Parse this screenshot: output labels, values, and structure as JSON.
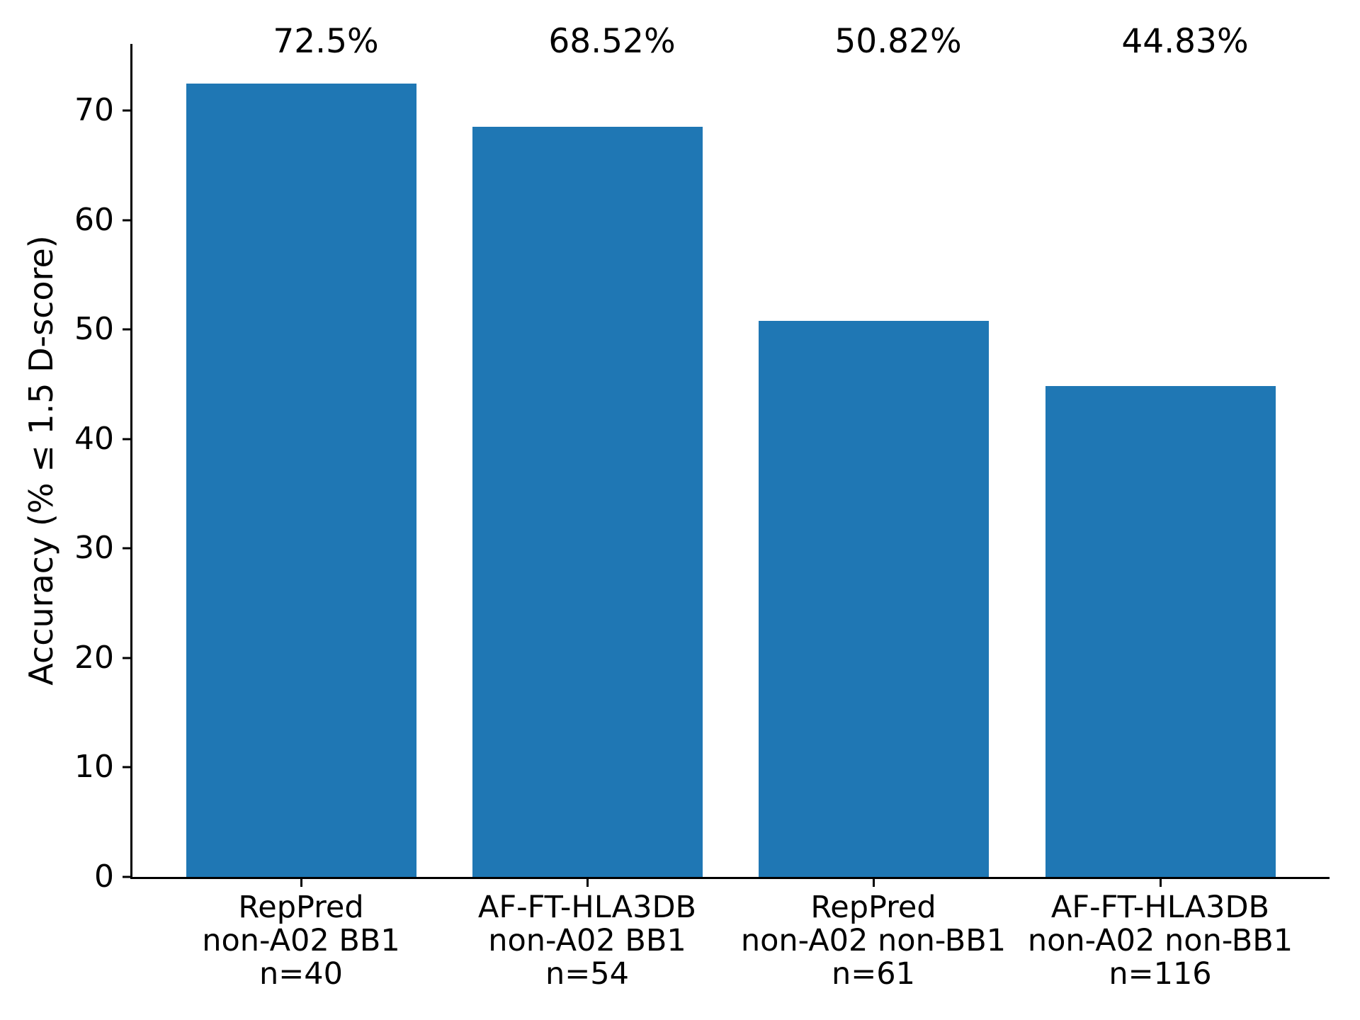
{
  "chart_data": {
    "type": "bar",
    "title": "",
    "xlabel": "",
    "ylabel": "Accuracy (% ≤ 1.5 D-score)",
    "ylim": [
      0,
      76.1
    ],
    "yticks": [
      0,
      10,
      20,
      30,
      40,
      50,
      60,
      70
    ],
    "grid": false,
    "legend": "none",
    "bar_color": "#1f77b4",
    "categories": [
      {
        "lines": [
          "RepPred",
          "non-A02 BB1",
          "n=40"
        ]
      },
      {
        "lines": [
          "AF-FT-HLA3DB",
          "non-A02 BB1",
          "n=54"
        ]
      },
      {
        "lines": [
          "RepPred",
          "non-A02 non-BB1",
          "n=61"
        ]
      },
      {
        "lines": [
          "AF-FT-HLA3DB",
          "non-A02 non-BB1",
          "n=116"
        ]
      }
    ],
    "values": [
      72.5,
      68.52,
      50.82,
      44.83
    ],
    "value_labels": [
      "72.5%",
      "68.52%",
      "50.82%",
      "44.83%"
    ]
  }
}
